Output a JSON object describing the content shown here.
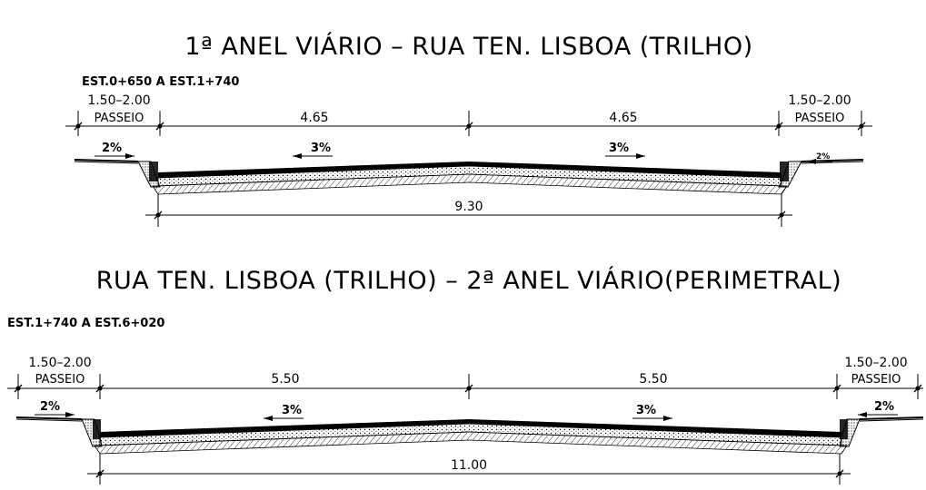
{
  "section1": {
    "title": "1ª ANEL VIÁRIO – RUA TEN. LISBOA (TRILHO)",
    "range": "EST.0+650 A EST.1+740",
    "left_sidewalk_width": "1.50–2.00",
    "left_sidewalk_label": "PASSEIO",
    "right_sidewalk_width": "1.50–2.00",
    "right_sidewalk_label": "PASSEIO",
    "lane_left": "4.65",
    "lane_right": "4.65",
    "total_width": "9.30",
    "slope_sidewalk_left": "2%",
    "slope_lane_left": "3%",
    "slope_lane_right": "3%",
    "slope_sidewalk_right": "2%"
  },
  "section2": {
    "title": "RUA TEN. LISBOA (TRILHO) – 2ª ANEL VIÁRIO(PERIMETRAL)",
    "range": "EST.1+740 A EST.6+020",
    "left_sidewalk_width": "1.50–2.00",
    "left_sidewalk_label": "PASSEIO",
    "right_sidewalk_width": "1.50–2.00",
    "right_sidewalk_label": "PASSEIO",
    "lane_left": "5.50",
    "lane_right": "5.50",
    "total_width": "11.00",
    "slope_sidewalk_left": "2%",
    "slope_lane_left": "3%",
    "slope_lane_right": "3%",
    "slope_sidewalk_right": "2%"
  }
}
